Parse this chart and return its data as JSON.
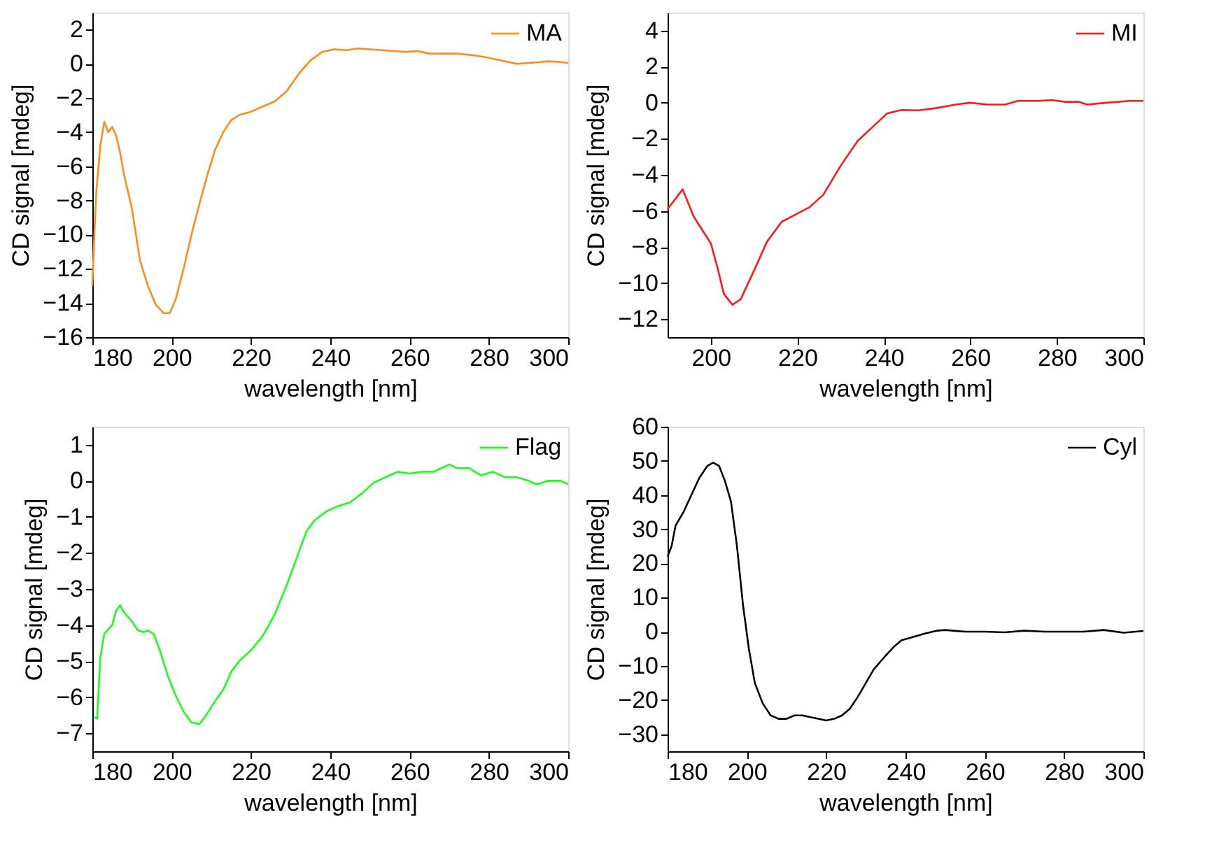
{
  "chart_data": [
    {
      "type": "line",
      "xlabel": "wavelength [nm]",
      "ylabel": "CD signal [mdeg]",
      "xlim": [
        180,
        300
      ],
      "xticks": [
        180,
        200,
        220,
        240,
        260,
        280,
        300
      ],
      "ylim": [
        -16,
        3
      ],
      "yticks": [
        -16,
        -14,
        -12,
        -10,
        -8,
        -6,
        -4,
        -2,
        0,
        2
      ],
      "legend": "top right",
      "series": [
        {
          "name": "MA",
          "color": "#ff8c1a",
          "x": [
            180,
            180.5,
            181,
            182,
            183,
            184,
            185,
            186,
            187,
            188,
            190,
            192,
            194,
            196,
            198,
            199.5,
            201,
            203,
            205,
            207,
            209,
            211,
            213,
            215,
            217,
            220,
            223,
            226,
            229,
            232,
            235,
            238,
            241,
            244,
            247,
            250,
            253,
            256,
            259,
            262,
            265,
            268,
            272,
            276,
            279,
            282,
            285,
            287,
            290,
            293,
            295,
            298,
            300
          ],
          "values": [
            -13,
            -10,
            -7.5,
            -4.8,
            -3.4,
            -4.0,
            -3.7,
            -4.2,
            -5.2,
            -6.5,
            -8.5,
            -11.5,
            -13,
            -14.1,
            -14.6,
            -14.6,
            -13.8,
            -12,
            -10,
            -8.2,
            -6.5,
            -5,
            -4,
            -3.3,
            -3,
            -2.8,
            -2.5,
            -2.2,
            -1.6,
            -0.6,
            0.2,
            0.7,
            0.85,
            0.8,
            0.9,
            0.85,
            0.8,
            0.75,
            0.7,
            0.75,
            0.6,
            0.6,
            0.6,
            0.5,
            0.4,
            0.25,
            0.1,
            0,
            0.05,
            0.1,
            0.15,
            0.1,
            0.05
          ]
        }
      ]
    },
    {
      "type": "line",
      "xlabel": "wavelength [nm]",
      "ylabel": "CD signal [mdeg]",
      "xlim": [
        190,
        300
      ],
      "xticks": [
        200,
        220,
        240,
        260,
        280,
        300
      ],
      "ylim": [
        -13,
        5
      ],
      "yticks": [
        -12,
        -10,
        -8,
        -6,
        -4,
        -2,
        0,
        2,
        4
      ],
      "legend": "top right",
      "series": [
        {
          "name": "MI",
          "color": "#ff1a1a",
          "x": [
            190,
            193.5,
            196,
            200,
            201.6,
            203,
            205,
            206.9,
            210,
            213,
            216.4,
            219.6,
            222.8,
            226,
            230,
            234,
            237.6,
            240.7,
            244,
            248,
            252,
            256.6,
            259.8,
            264,
            268,
            271,
            275.7,
            278.8,
            282,
            285,
            287,
            291.5,
            296.8,
            300
          ],
          "values": [
            -5.9,
            -4.8,
            -6.3,
            -7.8,
            -9.2,
            -10.6,
            -11.2,
            -10.9,
            -9.3,
            -7.7,
            -6.6,
            -6.2,
            -5.8,
            -5.1,
            -3.5,
            -2.1,
            -1.3,
            -0.6,
            -0.4,
            -0.42,
            -0.3,
            -0.1,
            0,
            -0.1,
            -0.1,
            0.1,
            0.1,
            0.15,
            0.05,
            0.05,
            -0.1,
            0,
            0.1,
            0.1
          ]
        }
      ]
    },
    {
      "type": "line",
      "xlabel": "wavelength [nm]",
      "ylabel": "CD signal [mdeg]",
      "xlim": [
        180,
        300
      ],
      "xticks": [
        180,
        200,
        220,
        240,
        260,
        280,
        300
      ],
      "ylim": [
        -7.5,
        1.5
      ],
      "yticks": [
        -7,
        -6,
        -5,
        -4,
        -3,
        -2,
        -1,
        0,
        1
      ],
      "legend": "top right",
      "series": [
        {
          "name": "Flag",
          "color": "#1aff1a",
          "x": [
            180.5,
            181.2,
            182,
            183,
            185,
            186,
            187,
            188,
            190,
            191.5,
            193,
            194,
            195.5,
            197,
            199,
            201,
            203,
            205,
            207,
            209,
            211,
            213,
            215,
            217,
            220,
            223,
            226,
            229,
            232,
            234,
            236,
            239,
            242,
            245,
            248,
            251,
            254,
            257,
            260,
            263,
            266,
            268,
            270,
            272,
            275,
            278,
            281,
            284,
            287,
            290,
            292,
            295,
            298,
            300
          ],
          "values": [
            -6.55,
            -6.6,
            -4.9,
            -4.25,
            -4.0,
            -3.6,
            -3.45,
            -3.65,
            -3.9,
            -4.15,
            -4.2,
            -4.15,
            -4.25,
            -4.7,
            -5.4,
            -5.95,
            -6.4,
            -6.7,
            -6.75,
            -6.45,
            -6.1,
            -5.8,
            -5.3,
            -5,
            -4.7,
            -4.3,
            -3.7,
            -2.9,
            -2,
            -1.4,
            -1.1,
            -0.85,
            -0.7,
            -0.6,
            -0.35,
            -0.05,
            0.1,
            0.25,
            0.2,
            0.25,
            0.25,
            0.35,
            0.45,
            0.35,
            0.35,
            0.15,
            0.25,
            0.1,
            0.1,
            0,
            -0.1,
            0,
            0,
            -0.1
          ]
        }
      ]
    },
    {
      "type": "line",
      "xlabel": "wavelength [nm]",
      "ylabel": "CD signal [mdeg]",
      "xlim": [
        180,
        300
      ],
      "xticks": [
        180,
        200,
        220,
        240,
        260,
        280,
        300
      ],
      "ylim": [
        -35,
        60
      ],
      "yticks": [
        -30,
        -20,
        -10,
        0,
        10,
        20,
        30,
        40,
        50,
        60
      ],
      "legend": "top right",
      "series": [
        {
          "name": "Cyl",
          "color": "#000000",
          "x": [
            180,
            181,
            182,
            184,
            186,
            188,
            190,
            191.5,
            193,
            194.5,
            196,
            197.5,
            199,
            200.5,
            202,
            204,
            206,
            208,
            210,
            212,
            214,
            216,
            218,
            220,
            222,
            224,
            226,
            228,
            230,
            232,
            235,
            237,
            239,
            242,
            245,
            248,
            250,
            252,
            255,
            260,
            265,
            270,
            275,
            280,
            285,
            290,
            295,
            300
          ],
          "values": [
            22,
            25,
            31,
            35,
            40,
            45,
            48.5,
            49.5,
            48.5,
            44,
            38,
            25,
            8,
            -5,
            -15,
            -21,
            -24.5,
            -25.5,
            -25.5,
            -24.5,
            -24.5,
            -25,
            -25.5,
            -26,
            -25.5,
            -24.5,
            -22.5,
            -19,
            -15,
            -11,
            -7,
            -4.5,
            -2.5,
            -1.5,
            -0.5,
            0.3,
            0.5,
            0.3,
            0,
            0,
            -0.2,
            0.3,
            0,
            0,
            0,
            0.5,
            -0.3,
            0.2
          ]
        }
      ]
    }
  ]
}
